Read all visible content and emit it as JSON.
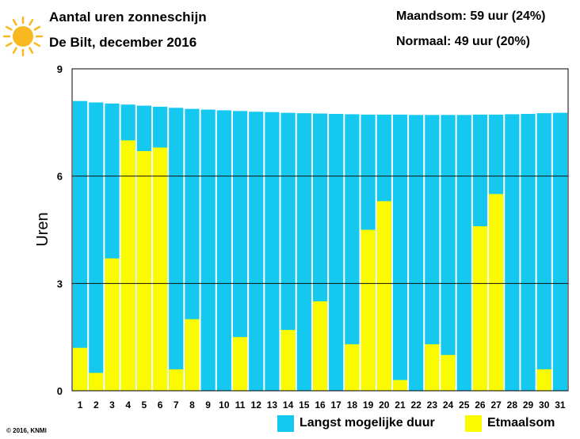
{
  "header": {
    "title": "Aantal uren zonneschijn",
    "subtitle": "De Bilt, december 2016",
    "stat_month": "Maandsom: 59 uur (24%)",
    "stat_normal": "Normaal: 49 uur (20%)"
  },
  "icon": "sun-icon",
  "copyright": "© 2016, KNMI",
  "colors": {
    "max_duration": "#14c8f0",
    "daily_sum": "#fafa00",
    "grid": "#111111",
    "sun": "#f7b91f"
  },
  "legend": {
    "max_label": "Langst mogelijke duur",
    "daily_label": "Etmaalsom"
  },
  "chart_data": {
    "type": "bar",
    "title": "Aantal uren zonneschijn",
    "subtitle": "De Bilt, december 2016",
    "xlabel": "",
    "ylabel": "Uren",
    "ylim": [
      0,
      9
    ],
    "yticks": [
      0,
      3,
      6,
      9
    ],
    "grid": true,
    "legend_position": "bottom-right",
    "categories": [
      "1",
      "2",
      "3",
      "4",
      "5",
      "6",
      "7",
      "8",
      "9",
      "10",
      "11",
      "12",
      "13",
      "14",
      "15",
      "16",
      "17",
      "18",
      "19",
      "20",
      "21",
      "22",
      "23",
      "24",
      "25",
      "26",
      "27",
      "28",
      "29",
      "30",
      "31"
    ],
    "series": [
      {
        "name": "Langst mogelijke duur",
        "values": [
          8.1,
          8.06,
          8.03,
          8.0,
          7.97,
          7.94,
          7.91,
          7.88,
          7.86,
          7.84,
          7.82,
          7.8,
          7.79,
          7.77,
          7.76,
          7.75,
          7.74,
          7.73,
          7.72,
          7.72,
          7.72,
          7.71,
          7.71,
          7.71,
          7.71,
          7.72,
          7.72,
          7.73,
          7.74,
          7.76,
          7.77
        ]
      },
      {
        "name": "Etmaalsom",
        "values": [
          1.2,
          0.5,
          3.7,
          7.0,
          6.7,
          6.8,
          0.6,
          2.0,
          0,
          0,
          1.5,
          0,
          0,
          1.7,
          0,
          2.5,
          0,
          1.3,
          4.5,
          5.3,
          0.3,
          0,
          1.3,
          1.0,
          0,
          4.6,
          5.5,
          0,
          0,
          0.6,
          0
        ]
      }
    ]
  }
}
